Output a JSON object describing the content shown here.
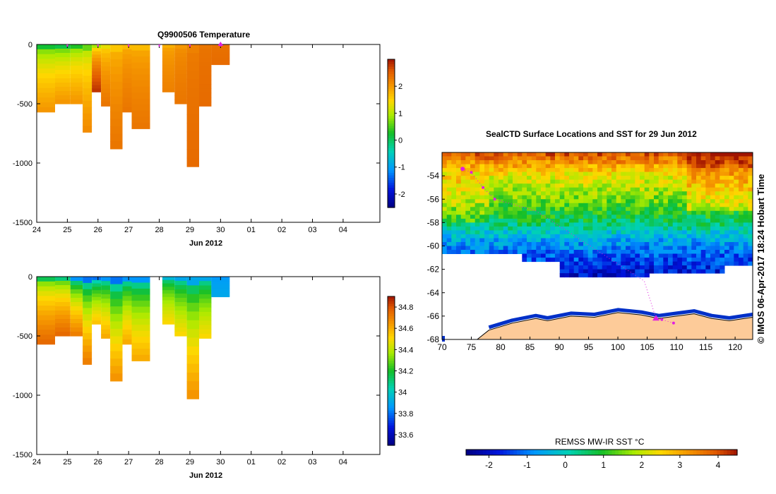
{
  "temp_panel": {
    "title": "Q9900506  Temperature",
    "xlabel": "Jun 2012",
    "x_ticks": [
      "24",
      "25",
      "26",
      "27",
      "28",
      "29",
      "30",
      "01",
      "02",
      "03",
      "04"
    ],
    "y_ticks": [
      "0",
      "-500",
      "-1000",
      "-1500"
    ],
    "colorbar_ticks": [
      "2",
      "1",
      "0",
      "-1",
      "-2"
    ]
  },
  "sal_panel": {
    "xlabel": "Jun 2012",
    "x_ticks": [
      "24",
      "25",
      "26",
      "27",
      "28",
      "29",
      "30",
      "01",
      "02",
      "03",
      "04"
    ],
    "y_ticks": [
      "0",
      "-500",
      "-1000",
      "-1500"
    ],
    "colorbar_ticks": [
      "34.8",
      "34.6",
      "34.4",
      "34.2",
      "34",
      "33.8",
      "33.6"
    ]
  },
  "map_panel": {
    "title": "SealCTD Surface Locations and SST for 29 Jun 2012",
    "lon_ticks": [
      "70",
      "75",
      "80",
      "85",
      "90",
      "95",
      "100",
      "105",
      "110",
      "115",
      "120"
    ],
    "lat_ticks": [
      "-54",
      "-56",
      "-58",
      "-60",
      "-62",
      "-64",
      "-66",
      "-68"
    ],
    "sst_label": "REMSS MW-IR SST °C",
    "sst_ticks": [
      "-2",
      "-1",
      "0",
      "1",
      "2",
      "3",
      "4"
    ]
  },
  "credit": "© IMOS 06-Apr-2017 18:24 Hobart Time",
  "chart_data": [
    {
      "type": "heatmap",
      "name": "temperature_section",
      "title": "Q9900506  Temperature",
      "xlabel": "Jun 2012",
      "ylabel": "",
      "xlim": [
        24,
        35.2
      ],
      "ylim": [
        -1500,
        0
      ],
      "colorbar_range": [
        -2.5,
        3
      ],
      "profiles": [
        {
          "day": 24.0,
          "max_depth": 570,
          "surface_value": 0.2,
          "deep_value": 2.0
        },
        {
          "day": 24.6,
          "max_depth": 500,
          "surface_value": 0.1,
          "deep_value": 2.0
        },
        {
          "day": 25.1,
          "max_depth": 500,
          "surface_value": 0.3,
          "deep_value": 2.0
        },
        {
          "day": 25.5,
          "max_depth": 740,
          "surface_value": 0.6,
          "deep_value": 2.1
        },
        {
          "day": 25.8,
          "max_depth": 400,
          "surface_value": 0.9,
          "deep_value": 2.8
        },
        {
          "day": 26.1,
          "max_depth": 520,
          "surface_value": 1.3,
          "deep_value": 2.3
        },
        {
          "day": 26.4,
          "max_depth": 880,
          "surface_value": 1.6,
          "deep_value": 2.3
        },
        {
          "day": 26.8,
          "max_depth": 570,
          "surface_value": 1.7,
          "deep_value": 2.3
        },
        {
          "day": 27.1,
          "max_depth": 710,
          "surface_value": 1.7,
          "deep_value": 2.3
        },
        {
          "day": 28.1,
          "max_depth": 400,
          "surface_value": 1.8,
          "deep_value": 2.2
        },
        {
          "day": 28.5,
          "max_depth": 500,
          "surface_value": 2.0,
          "deep_value": 2.3
        },
        {
          "day": 28.9,
          "max_depth": 1030,
          "surface_value": 2.2,
          "deep_value": 2.4
        },
        {
          "day": 29.3,
          "max_depth": 520,
          "surface_value": 2.3,
          "deep_value": 2.4
        },
        {
          "day": 29.7,
          "max_depth": 170,
          "surface_value": 2.3,
          "deep_value": 2.4
        }
      ],
      "surface_markers": [
        25.0,
        26.0,
        27.0,
        28.0,
        29.0,
        30.0
      ]
    },
    {
      "type": "heatmap",
      "name": "salinity_section",
      "title": "",
      "xlabel": "Jun 2012",
      "ylabel": "",
      "xlim": [
        24,
        35.2
      ],
      "ylim": [
        -1500,
        0
      ],
      "colorbar_range": [
        33.5,
        34.9
      ],
      "profiles": [
        {
          "day": 24.0,
          "max_depth": 570,
          "surface_value": 34.15,
          "deep_value": 34.75
        },
        {
          "day": 24.6,
          "max_depth": 500,
          "surface_value": 34.1,
          "deep_value": 34.75
        },
        {
          "day": 25.1,
          "max_depth": 500,
          "surface_value": 33.85,
          "deep_value": 34.7
        },
        {
          "day": 25.5,
          "max_depth": 740,
          "surface_value": 33.8,
          "deep_value": 34.7
        },
        {
          "day": 25.8,
          "max_depth": 400,
          "surface_value": 33.8,
          "deep_value": 34.55
        },
        {
          "day": 26.1,
          "max_depth": 520,
          "surface_value": 33.85,
          "deep_value": 34.6
        },
        {
          "day": 26.4,
          "max_depth": 880,
          "surface_value": 33.8,
          "deep_value": 34.65
        },
        {
          "day": 26.8,
          "max_depth": 570,
          "surface_value": 33.85,
          "deep_value": 34.6
        },
        {
          "day": 27.1,
          "max_depth": 710,
          "surface_value": 33.85,
          "deep_value": 34.6
        },
        {
          "day": 28.1,
          "max_depth": 400,
          "surface_value": 33.95,
          "deep_value": 34.5
        },
        {
          "day": 28.5,
          "max_depth": 500,
          "surface_value": 33.9,
          "deep_value": 34.5
        },
        {
          "day": 28.9,
          "max_depth": 1030,
          "surface_value": 33.9,
          "deep_value": 34.65
        },
        {
          "day": 29.3,
          "max_depth": 520,
          "surface_value": 33.9,
          "deep_value": 34.5
        },
        {
          "day": 29.7,
          "max_depth": 170,
          "surface_value": 33.85,
          "deep_value": 33.9
        }
      ]
    },
    {
      "type": "heatmap",
      "name": "sst_map",
      "title": "SealCTD Surface Locations and SST for 29 Jun 2012",
      "xlabel": "",
      "ylabel": "",
      "xlim": [
        70,
        123
      ],
      "ylim": [
        -68,
        -52
      ],
      "colorbar_label": "REMSS MW-IR SST °C",
      "colorbar_range": [
        -2.6,
        4.5
      ],
      "sst_bands": [
        {
          "lat": -52.5,
          "sst": 3.6
        },
        {
          "lat": -54.0,
          "sst": 2.3
        },
        {
          "lat": -56.0,
          "sst": 1.5
        },
        {
          "lat": -58.0,
          "sst": 0.6
        },
        {
          "lat": -59.5,
          "sst": -0.6
        },
        {
          "lat": -61.0,
          "sst": -1.3
        },
        {
          "lat": -62.5,
          "sst": -1.9
        }
      ],
      "track": [
        [
          73.5,
          -53.4
        ],
        [
          75.0,
          -53.7
        ],
        [
          77.0,
          -55.0
        ],
        [
          79.0,
          -56.0
        ],
        [
          86.0,
          -57.0
        ],
        [
          104.5,
          -63.0
        ],
        [
          106.5,
          -66.2
        ],
        [
          107.5,
          -66.3
        ],
        [
          109.5,
          -66.6
        ]
      ]
    }
  ]
}
